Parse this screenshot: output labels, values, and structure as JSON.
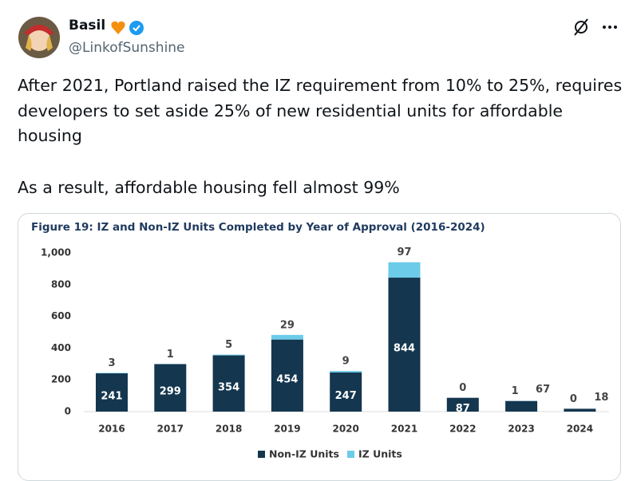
{
  "tweet": {
    "name": "Basil",
    "handle": "@LinkofSunshine",
    "paragraphs": [
      "After 2021, Portland raised the IZ requirement from 10% to 25%, requires developers to set aside 25% of new residential units for affordable housing",
      "As a result, affordable housing fell almost 99%"
    ]
  },
  "chart_data": {
    "type": "stacked-bar",
    "title": "Figure 19: IZ and Non-IZ Units Completed by Year of Approval (2016-2024)",
    "categories": [
      "2016",
      "2017",
      "2018",
      "2019",
      "2020",
      "2021",
      "2022",
      "2023",
      "2024"
    ],
    "series": [
      {
        "name": "Non-IZ Units",
        "color": "#14364f",
        "values": [
          241,
          299,
          354,
          454,
          247,
          844,
          87,
          67,
          18
        ]
      },
      {
        "name": "IZ Units",
        "color": "#6ccbe8",
        "values": [
          3,
          1,
          5,
          29,
          9,
          97,
          0,
          1,
          0
        ]
      }
    ],
    "ylim": [
      0,
      1000
    ],
    "yticks": [
      0,
      200,
      400,
      600,
      800,
      {
        "value": 1000,
        "label": "1,000"
      }
    ],
    "legend": "bottom"
  }
}
